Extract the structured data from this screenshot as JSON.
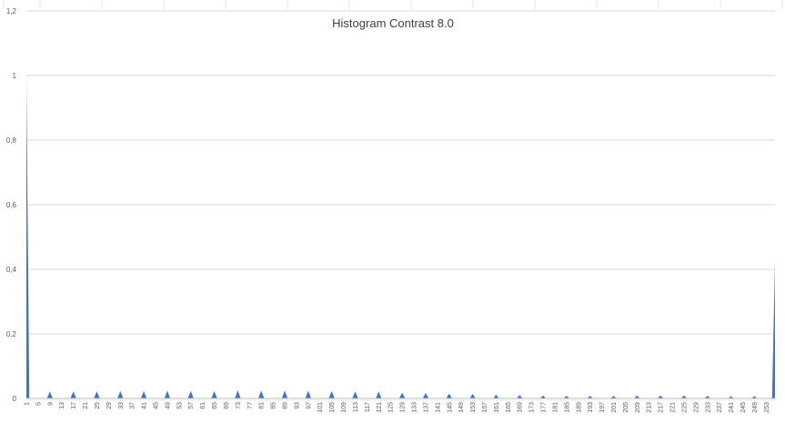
{
  "chart_data": {
    "type": "area",
    "title": "Histogram Contrast 8.0",
    "xlabel": "",
    "ylabel": "",
    "ylim": [
      0,
      1.2
    ],
    "y_ticks": [
      "0",
      "0,2",
      "0,4",
      "0,6",
      "0,8",
      "1",
      "1,2"
    ],
    "x_range": [
      1,
      256
    ],
    "x_tick_labels": [
      "1",
      "5",
      "9",
      "13",
      "17",
      "21",
      "25",
      "29",
      "33",
      "37",
      "41",
      "45",
      "49",
      "53",
      "57",
      "61",
      "65",
      "69",
      "73",
      "77",
      "81",
      "85",
      "89",
      "93",
      "97",
      "101",
      "105",
      "109",
      "113",
      "117",
      "121",
      "125",
      "129",
      "133",
      "137",
      "141",
      "145",
      "149",
      "153",
      "157",
      "161",
      "165",
      "169",
      "173",
      "177",
      "181",
      "185",
      "189",
      "193",
      "197",
      "201",
      "205",
      "209",
      "213",
      "217",
      "221",
      "225",
      "229",
      "233",
      "237",
      "241",
      "245",
      "249",
      "253"
    ],
    "grid": "horizontal",
    "legend": "none",
    "series_color": "#4472c4",
    "points": [
      {
        "x": 1,
        "y": 0.99
      },
      {
        "x": 9,
        "y": 0.021
      },
      {
        "x": 17,
        "y": 0.022
      },
      {
        "x": 25,
        "y": 0.022
      },
      {
        "x": 33,
        "y": 0.023
      },
      {
        "x": 41,
        "y": 0.023
      },
      {
        "x": 49,
        "y": 0.024
      },
      {
        "x": 57,
        "y": 0.023
      },
      {
        "x": 65,
        "y": 0.023
      },
      {
        "x": 73,
        "y": 0.025
      },
      {
        "x": 81,
        "y": 0.024
      },
      {
        "x": 89,
        "y": 0.024
      },
      {
        "x": 97,
        "y": 0.024
      },
      {
        "x": 105,
        "y": 0.023
      },
      {
        "x": 113,
        "y": 0.022
      },
      {
        "x": 121,
        "y": 0.021
      },
      {
        "x": 129,
        "y": 0.018
      },
      {
        "x": 137,
        "y": 0.017
      },
      {
        "x": 145,
        "y": 0.015
      },
      {
        "x": 153,
        "y": 0.014
      },
      {
        "x": 161,
        "y": 0.012
      },
      {
        "x": 169,
        "y": 0.011
      },
      {
        "x": 177,
        "y": 0.009
      },
      {
        "x": 185,
        "y": 0.008
      },
      {
        "x": 193,
        "y": 0.008
      },
      {
        "x": 201,
        "y": 0.008
      },
      {
        "x": 209,
        "y": 0.009
      },
      {
        "x": 217,
        "y": 0.009
      },
      {
        "x": 225,
        "y": 0.009
      },
      {
        "x": 233,
        "y": 0.008
      },
      {
        "x": 241,
        "y": 0.007
      },
      {
        "x": 249,
        "y": 0.007
      },
      {
        "x": 256,
        "y": 0.42
      }
    ]
  }
}
